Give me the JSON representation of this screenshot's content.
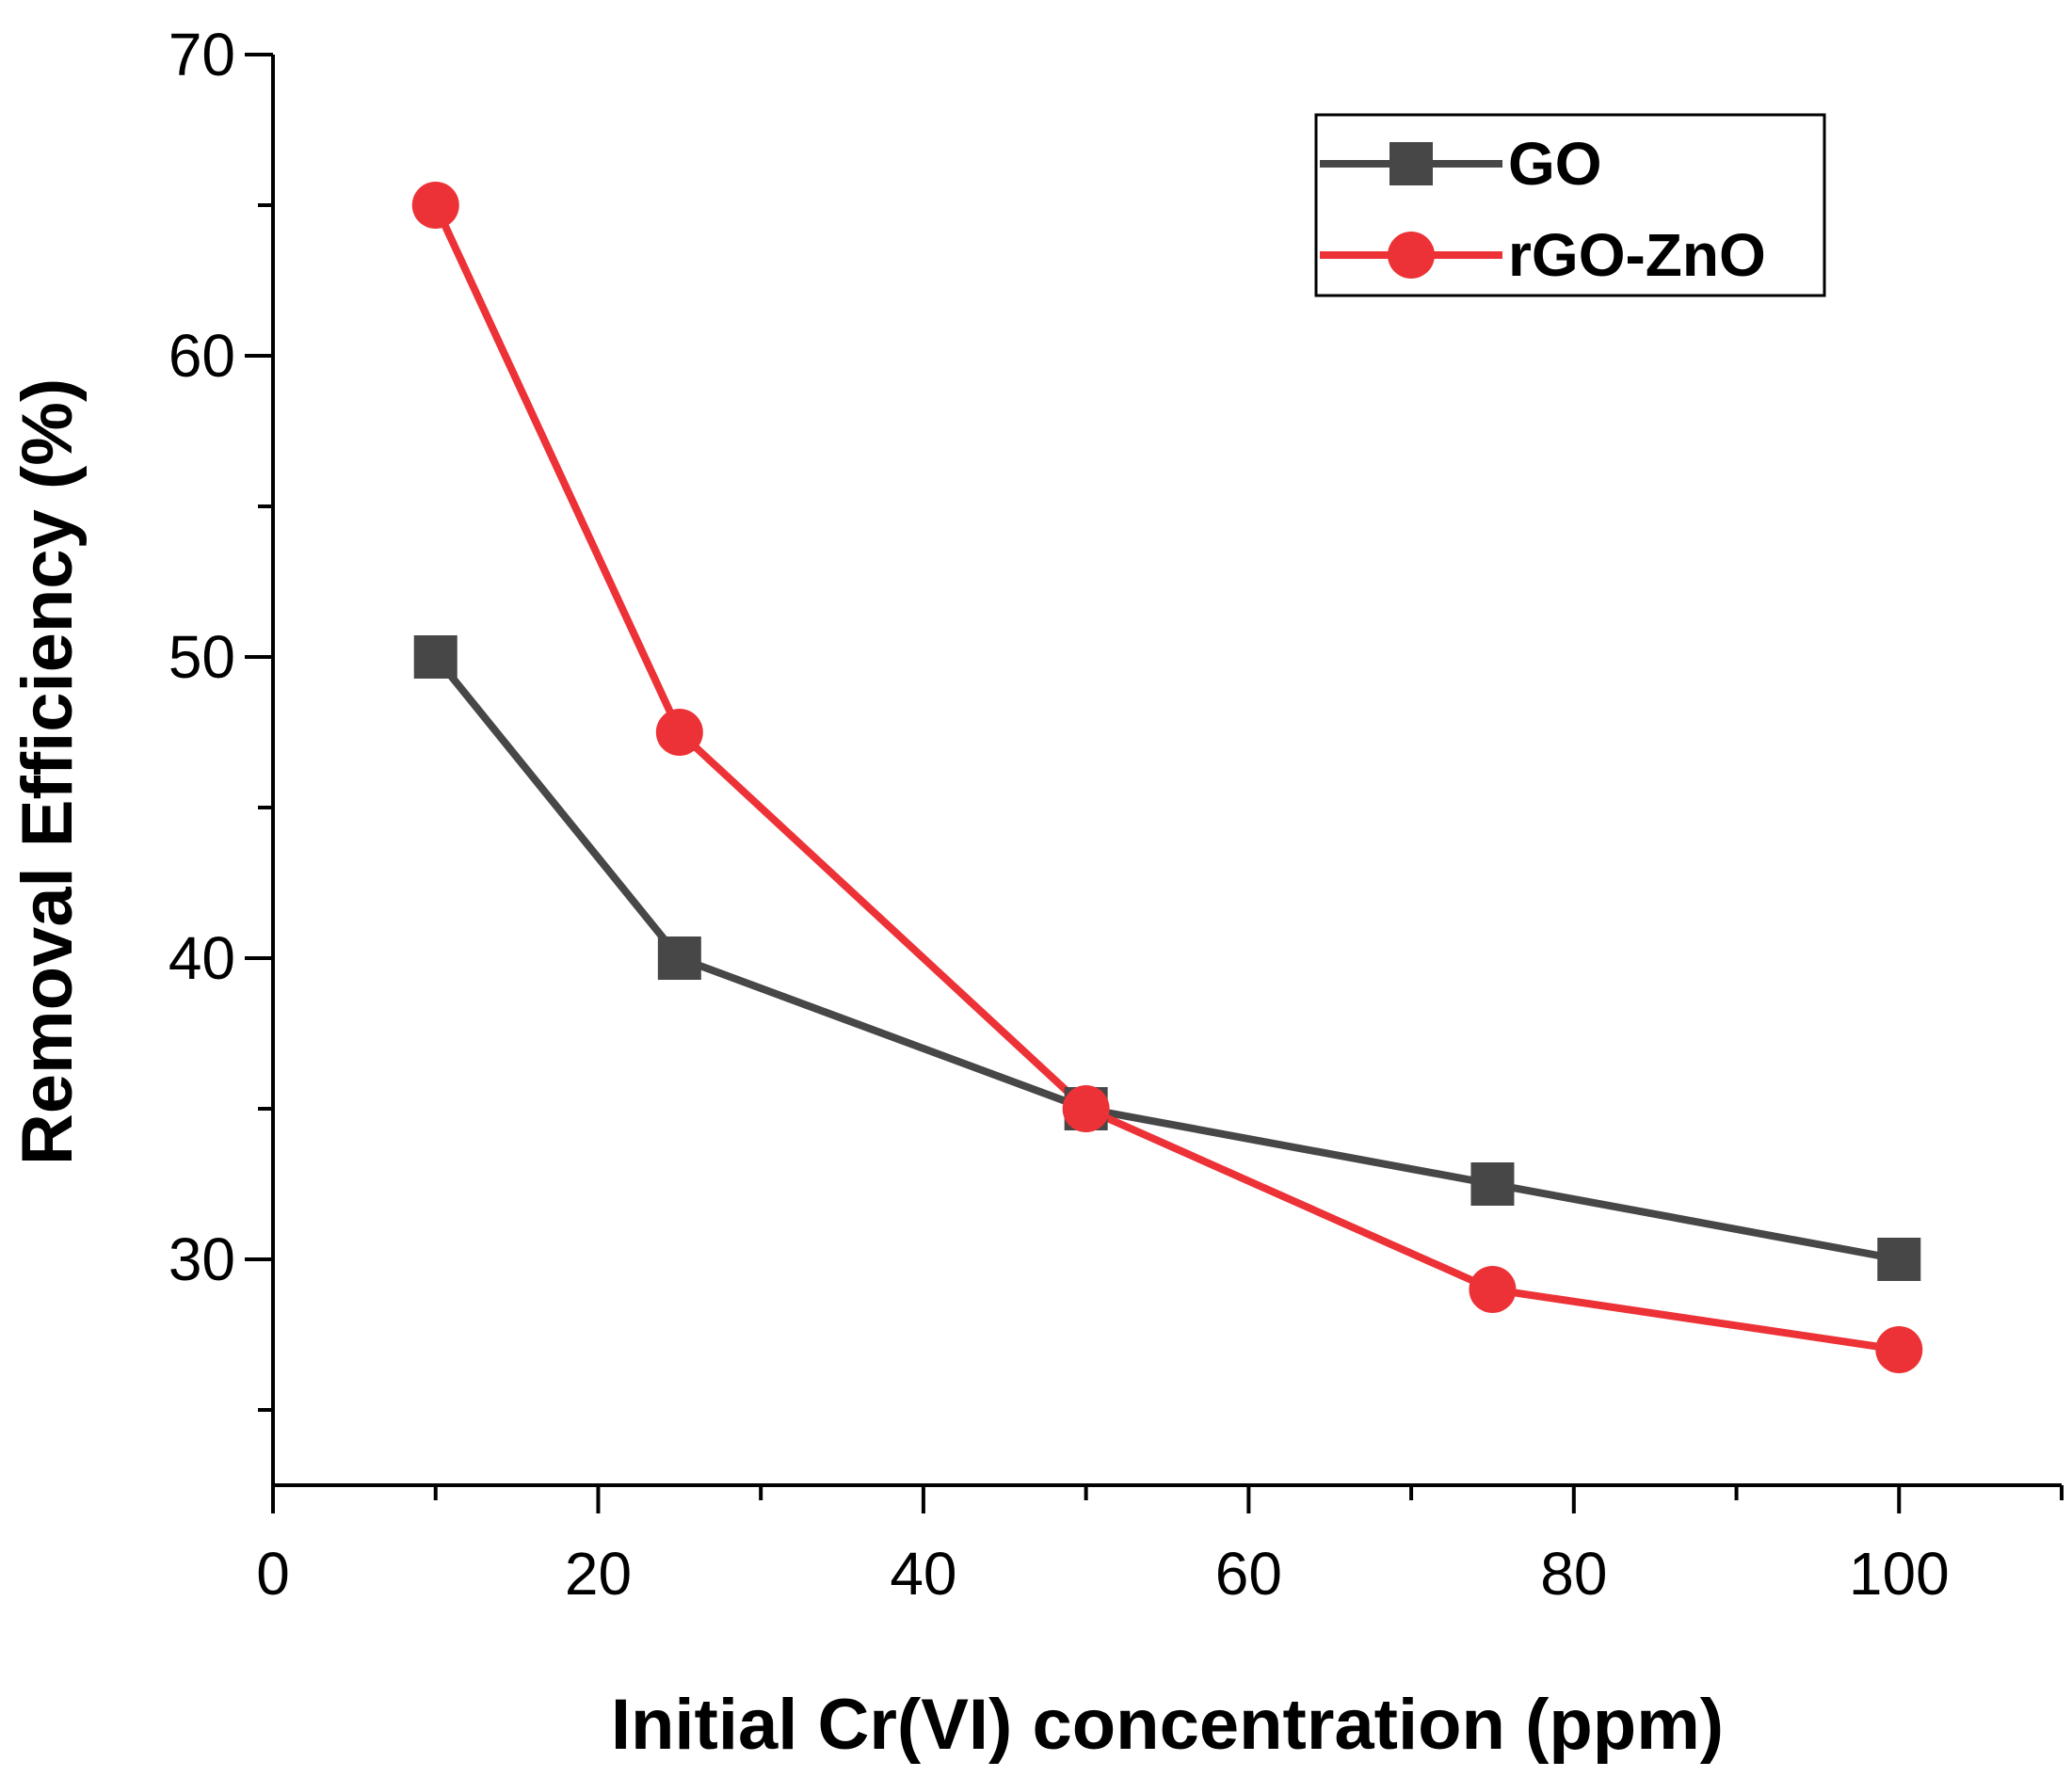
{
  "chart_data": {
    "type": "line",
    "xlabel": "Initial Cr(VI) concentration (ppm)",
    "ylabel": "Removal Efficiency (%)",
    "xlim": [
      0,
      110
    ],
    "ylim": [
      22.5,
      70
    ],
    "xticks": [
      0,
      20,
      40,
      60,
      80,
      100
    ],
    "xtick_labels": [
      "0",
      "20",
      "40",
      "60",
      "80",
      "100"
    ],
    "xminor": [
      10,
      30,
      50,
      70,
      90,
      110
    ],
    "yticks": [
      30,
      40,
      50,
      60,
      70
    ],
    "ytick_labels": [
      "30",
      "40",
      "50",
      "60",
      "70"
    ],
    "yminor": [
      25,
      35,
      45,
      55,
      65
    ],
    "grid": false,
    "legend_position": "top-right",
    "x": [
      10,
      25,
      50,
      75,
      100
    ],
    "series": [
      {
        "name": "GO",
        "marker": "square",
        "color": "#474747",
        "values": [
          50,
          40,
          35,
          32.5,
          30
        ]
      },
      {
        "name": "rGO-ZnO",
        "marker": "circle",
        "color": "#ed3237",
        "values": [
          65,
          47.5,
          35,
          29,
          27
        ]
      }
    ]
  }
}
